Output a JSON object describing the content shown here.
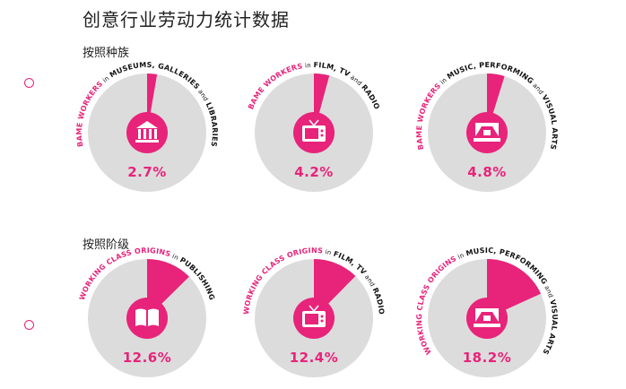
{
  "page": {
    "title": "创意行业劳动力统计数据",
    "section1_label": "按照种族",
    "section2_label": "按照阶级"
  },
  "colors": {
    "accent": "#e8237a",
    "disc": "#dcdcdc",
    "text": "#111111"
  },
  "chart_data": [
    {
      "type": "pie",
      "group": "按照种族",
      "value": 2.7,
      "label": "2.7%",
      "icon": "museum-icon",
      "caption": [
        {
          "text": "BAME WORKERS",
          "accent": true
        },
        {
          "text": " in ",
          "small": true
        },
        {
          "text": "MUSEUMS, GALLERIES",
          "accent": false
        },
        {
          "text": " and ",
          "small": true
        },
        {
          "text": "LIBRARIES",
          "accent": false
        }
      ]
    },
    {
      "type": "pie",
      "group": "按照种族",
      "value": 4.2,
      "label": "4.2%",
      "icon": "tv-icon",
      "caption": [
        {
          "text": "BAME WORKERS",
          "accent": true
        },
        {
          "text": " in ",
          "small": true
        },
        {
          "text": "FILM, TV",
          "accent": false
        },
        {
          "text": " and ",
          "small": true
        },
        {
          "text": "RADIO",
          "accent": false
        }
      ]
    },
    {
      "type": "pie",
      "group": "按照种族",
      "value": 4.8,
      "label": "4.8%",
      "icon": "stage-icon",
      "caption": [
        {
          "text": "BAME WORKERS",
          "accent": true
        },
        {
          "text": " in ",
          "small": true
        },
        {
          "text": "MUSIC, PERFORMING",
          "accent": false
        },
        {
          "text": " and ",
          "small": true
        },
        {
          "text": "VISUAL ARTS",
          "accent": false
        }
      ]
    },
    {
      "type": "pie",
      "group": "按照阶级",
      "value": 12.6,
      "label": "12.6%",
      "icon": "book-icon",
      "caption": [
        {
          "text": "WORKING CLASS ORIGINS",
          "accent": true
        },
        {
          "text": " in ",
          "small": true
        },
        {
          "text": "PUBLISHING",
          "accent": false
        }
      ]
    },
    {
      "type": "pie",
      "group": "按照阶级",
      "value": 12.4,
      "label": "12.4%",
      "icon": "tv-icon",
      "caption": [
        {
          "text": "WORKING CLASS ORIGINS",
          "accent": true
        },
        {
          "text": " in ",
          "small": true
        },
        {
          "text": "FILM, TV",
          "accent": false
        },
        {
          "text": " and ",
          "small": true
        },
        {
          "text": "RADIO",
          "accent": false
        }
      ]
    },
    {
      "type": "pie",
      "group": "按照阶级",
      "value": 18.2,
      "label": "18.2%",
      "icon": "stage-icon",
      "caption": [
        {
          "text": "WORKING CLASS ORIGINS",
          "accent": true
        },
        {
          "text": " in ",
          "small": true
        },
        {
          "text": "MUSIC, PERFORMING",
          "accent": false
        },
        {
          "text": " and ",
          "small": true
        },
        {
          "text": "VISUAL ARTS",
          "accent": false
        }
      ]
    }
  ]
}
